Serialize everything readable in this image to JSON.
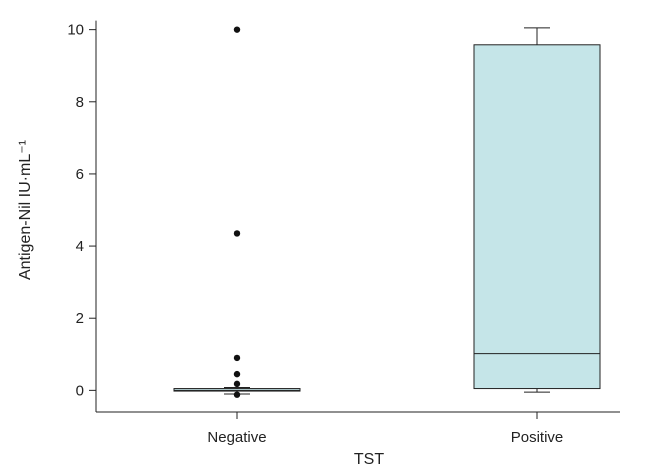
{
  "chart_data": {
    "type": "box",
    "xlabel": "TST",
    "ylabel": "Antigen-Nil IU·mL⁻¹",
    "categories": [
      "Negative",
      "Positive"
    ],
    "ylim": [
      -0.6,
      10.6
    ],
    "yticks": [
      0,
      2,
      4,
      6,
      8,
      10
    ],
    "ytick_labels": [
      "0",
      "2",
      "4",
      "6",
      "8",
      "10"
    ],
    "grid": false,
    "box_color": "#c5e5e8",
    "boxes": [
      {
        "category": "Negative",
        "whisker_low": -0.1,
        "q1": -0.02,
        "median": 0.0,
        "q3": 0.05,
        "whisker_high": 0.08,
        "outliers": [
          10.0,
          4.35,
          0.9,
          0.45,
          0.18,
          -0.12
        ]
      },
      {
        "category": "Positive",
        "whisker_low": -0.05,
        "q1": 0.05,
        "median": 1.02,
        "q3": 9.58,
        "whisker_high": 10.05,
        "outliers": []
      }
    ]
  }
}
